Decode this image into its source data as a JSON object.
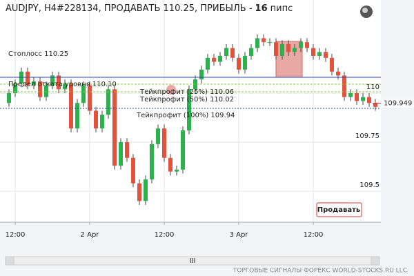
{
  "chart_data": {
    "type": "candlestick",
    "title": "AUDJPY, H4#228134, ПРОДАВАТЬ 110.25, ПРИБЫЛЬ -",
    "profit_pips": 16,
    "profit_unit": "пипс",
    "categories": [
      null,
      "12:00",
      null,
      null,
      null,
      null,
      null,
      null,
      null,
      null,
      null,
      null,
      null,
      "2 Apr",
      null,
      null,
      null,
      null,
      null,
      null,
      null,
      null,
      null,
      null,
      null,
      "12:00",
      null,
      null,
      null,
      null,
      null,
      null,
      null,
      null,
      null,
      null,
      null,
      "3 Apr",
      null,
      null,
      null,
      null,
      null,
      null,
      null,
      null,
      null,
      null,
      null,
      "12:00",
      null,
      null,
      null,
      null,
      null,
      null,
      null,
      null,
      null,
      null
    ],
    "open": [
      109.95,
      110.0,
      110.05,
      110.11,
      110.04,
      110.06,
      109.98,
      110.04,
      110.09,
      110.02,
      110.05,
      109.82,
      109.95,
      110.04,
      109.91,
      109.82,
      109.89,
      110.02,
      109.63,
      109.75,
      109.67,
      109.54,
      109.45,
      109.56,
      109.74,
      109.82,
      109.67,
      109.6,
      109.61,
      109.81,
      110.02,
      110.07,
      110.12,
      110.18,
      110.16,
      110.19,
      110.23,
      110.18,
      110.12,
      110.19,
      110.23,
      110.28,
      110.26,
      110.26,
      110.19,
      110.25,
      110.21,
      110.23,
      110.26,
      110.23,
      110.19,
      110.21,
      110.18,
      110.11,
      110.09,
      109.98,
      110.0,
      109.96,
      109.98,
      109.95
    ],
    "high": [
      110.02,
      110.07,
      110.13,
      110.13,
      110.08,
      110.08,
      110.06,
      110.11,
      110.11,
      110.07,
      110.07,
      109.97,
      110.06,
      110.06,
      109.93,
      109.91,
      110.04,
      110.04,
      109.77,
      109.77,
      109.69,
      109.56,
      109.58,
      109.76,
      109.84,
      109.84,
      109.69,
      109.63,
      109.83,
      110.04,
      110.09,
      110.14,
      110.2,
      110.2,
      110.21,
      110.25,
      110.25,
      110.2,
      110.21,
      110.25,
      110.3,
      110.3,
      110.28,
      110.28,
      110.27,
      110.27,
      110.25,
      110.28,
      110.28,
      110.25,
      110.23,
      110.23,
      110.2,
      110.13,
      110.11,
      110.02,
      110.02,
      110.0,
      110.0,
      109.97
    ],
    "low": [
      109.93,
      109.98,
      110.03,
      110.02,
      110.02,
      109.96,
      109.96,
      110.02,
      110.0,
      110.0,
      109.8,
      109.8,
      109.93,
      109.89,
      109.8,
      109.8,
      109.87,
      109.61,
      109.61,
      109.65,
      109.52,
      109.43,
      109.43,
      109.54,
      109.72,
      109.65,
      109.58,
      109.58,
      109.59,
      109.79,
      110.0,
      110.05,
      110.1,
      110.14,
      110.14,
      110.17,
      110.16,
      110.1,
      110.1,
      110.17,
      110.21,
      110.24,
      110.24,
      110.17,
      110.17,
      110.19,
      110.19,
      110.21,
      110.21,
      110.17,
      110.17,
      110.16,
      110.09,
      110.07,
      109.96,
      109.96,
      109.94,
      109.94,
      109.93,
      109.91
    ],
    "close": [
      110.0,
      110.05,
      110.11,
      110.04,
      110.06,
      109.98,
      110.04,
      110.09,
      110.02,
      110.05,
      109.82,
      109.95,
      110.04,
      109.91,
      109.82,
      109.89,
      110.02,
      109.63,
      109.75,
      109.67,
      109.54,
      109.45,
      109.56,
      109.74,
      109.82,
      109.67,
      109.6,
      109.61,
      109.81,
      110.02,
      110.07,
      110.12,
      110.18,
      110.16,
      110.19,
      110.23,
      110.18,
      110.12,
      110.19,
      110.23,
      110.28,
      110.26,
      110.26,
      110.19,
      110.25,
      110.21,
      110.23,
      110.26,
      110.23,
      110.19,
      110.21,
      110.18,
      110.11,
      110.09,
      109.98,
      110.0,
      109.96,
      109.98,
      109.95,
      109.93
    ],
    "up_color": "#2bb24c",
    "down_color": "#e2533e",
    "ylim": [
      109.342,
      110.475
    ],
    "yticks": [
      109.5,
      109.75,
      {
        "value": 110,
        "label": "110"
      }
    ],
    "grid": true,
    "current_price": 109.949,
    "stoploss_label": "Стоплосс 110.25",
    "retrace_label": "Предел отката уровня 110.10",
    "tp25_label": "Тейкпрофит (25%) 110.06",
    "tp50_label": "Тейкпрофит (50%) 110.02",
    "tp100_label": "Тейкпрофит (100%) 109.94",
    "sell_button": "Продавать",
    "scroll_label": "III",
    "footer": "ТОРГОВЫЕ СИГНАЛЫ ФОРЕКС WORLD-STOCKS.RU LLC"
  }
}
